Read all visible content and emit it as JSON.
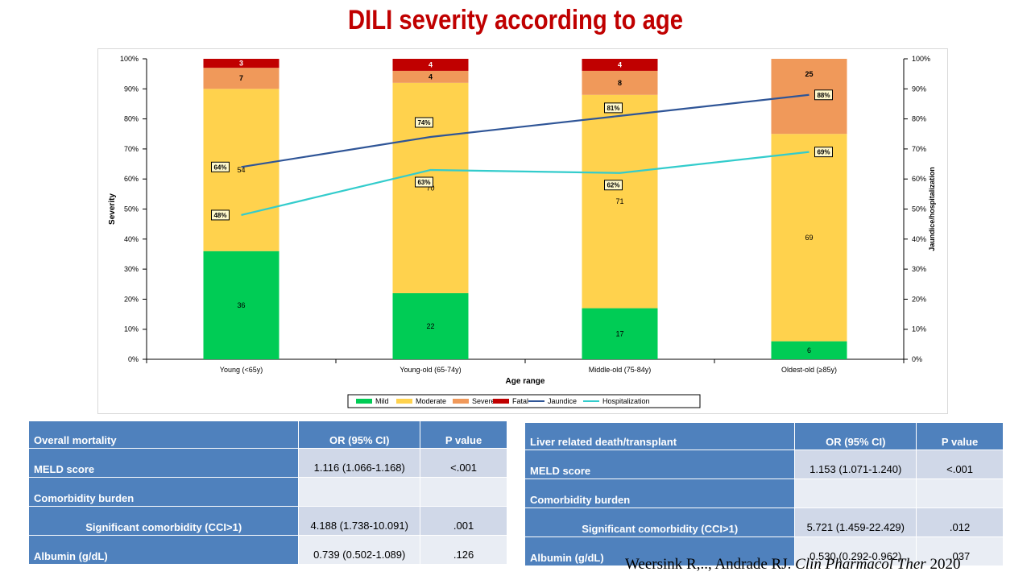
{
  "title": "DILI severity according to age",
  "chart_data": {
    "type": "bar",
    "stacked": true,
    "categories": [
      "Young (<65y)",
      "Young-old (65-74y)",
      "Middle-old (75-84y)",
      "Oldest-old (≥85y)"
    ],
    "series": [
      {
        "name": "Mild",
        "color": "#00cc55",
        "values": [
          36,
          22,
          17,
          6
        ]
      },
      {
        "name": "Moderate",
        "color": "#ffd24d",
        "values": [
          54,
          70,
          71,
          69
        ]
      },
      {
        "name": "Severe",
        "color": "#f0995a",
        "values": [
          7,
          4,
          8,
          25
        ]
      },
      {
        "name": "Fatal",
        "color": "#c00000",
        "values": [
          3,
          4,
          4,
          0
        ]
      }
    ],
    "series_labels": [
      [
        "36",
        "22",
        "17",
        "6"
      ],
      [
        "54",
        "70",
        "71",
        "69"
      ],
      [
        "7",
        "4",
        "8",
        "25"
      ],
      [
        "3",
        "4",
        "4",
        ""
      ]
    ],
    "lines": [
      {
        "name": "Jaundice",
        "color": "#2f5597",
        "values": [
          64,
          74,
          81,
          88
        ],
        "labels": [
          "64%",
          "74%",
          "81%",
          "88%"
        ]
      },
      {
        "name": "Hospitalization",
        "color": "#33cccc",
        "values": [
          48,
          63,
          62,
          69
        ],
        "labels": [
          "48%",
          "63%",
          "62%",
          "69%"
        ]
      }
    ],
    "xlabel": "Age range",
    "ylabel": "Severity",
    "y2label": "Jaundice/hospitalization",
    "ylim": [
      0,
      100
    ],
    "y2lim": [
      0,
      100
    ],
    "yticks": [
      "0%",
      "10%",
      "20%",
      "30%",
      "40%",
      "50%",
      "60%",
      "70%",
      "80%",
      "90%",
      "100%"
    ],
    "legend_position": "bottom"
  },
  "table_left": {
    "headers": [
      "Overall mortality",
      "OR (95% CI)",
      "P value"
    ],
    "rows": [
      {
        "label": "MELD score",
        "or": "1.116 (1.066-1.168)",
        "p": "<.001"
      },
      {
        "label": "Comorbidity burden",
        "or": "",
        "p": ""
      },
      {
        "label": "Significant comorbidity (CCI>1)",
        "or": "4.188 (1.738-10.091)",
        "p": ".001"
      },
      {
        "label": "Albumin (g/dL)",
        "or": "0.739 (0.502-1.089)",
        "p": ".126"
      }
    ]
  },
  "table_right": {
    "headers": [
      "Liver related death/transplant",
      "OR (95% CI)",
      "P value"
    ],
    "rows": [
      {
        "label": "MELD score",
        "or": "1.153 (1.071-1.240)",
        "p": "<.001"
      },
      {
        "label": "Comorbidity burden",
        "or": "",
        "p": ""
      },
      {
        "label": "Significant comorbidity (CCI>1)",
        "or": "5.721 (1.459-22.429)",
        "p": ".012"
      },
      {
        "label": "Albumin (g/dL)",
        "or": "0.530 (0.292-0.962)",
        "p": ".037"
      }
    ]
  },
  "citation": {
    "authors": "Weersink  R,.., Andrade  RJ. ",
    "journal": "Clin Pharmacol Ther",
    "year": " 2020"
  }
}
